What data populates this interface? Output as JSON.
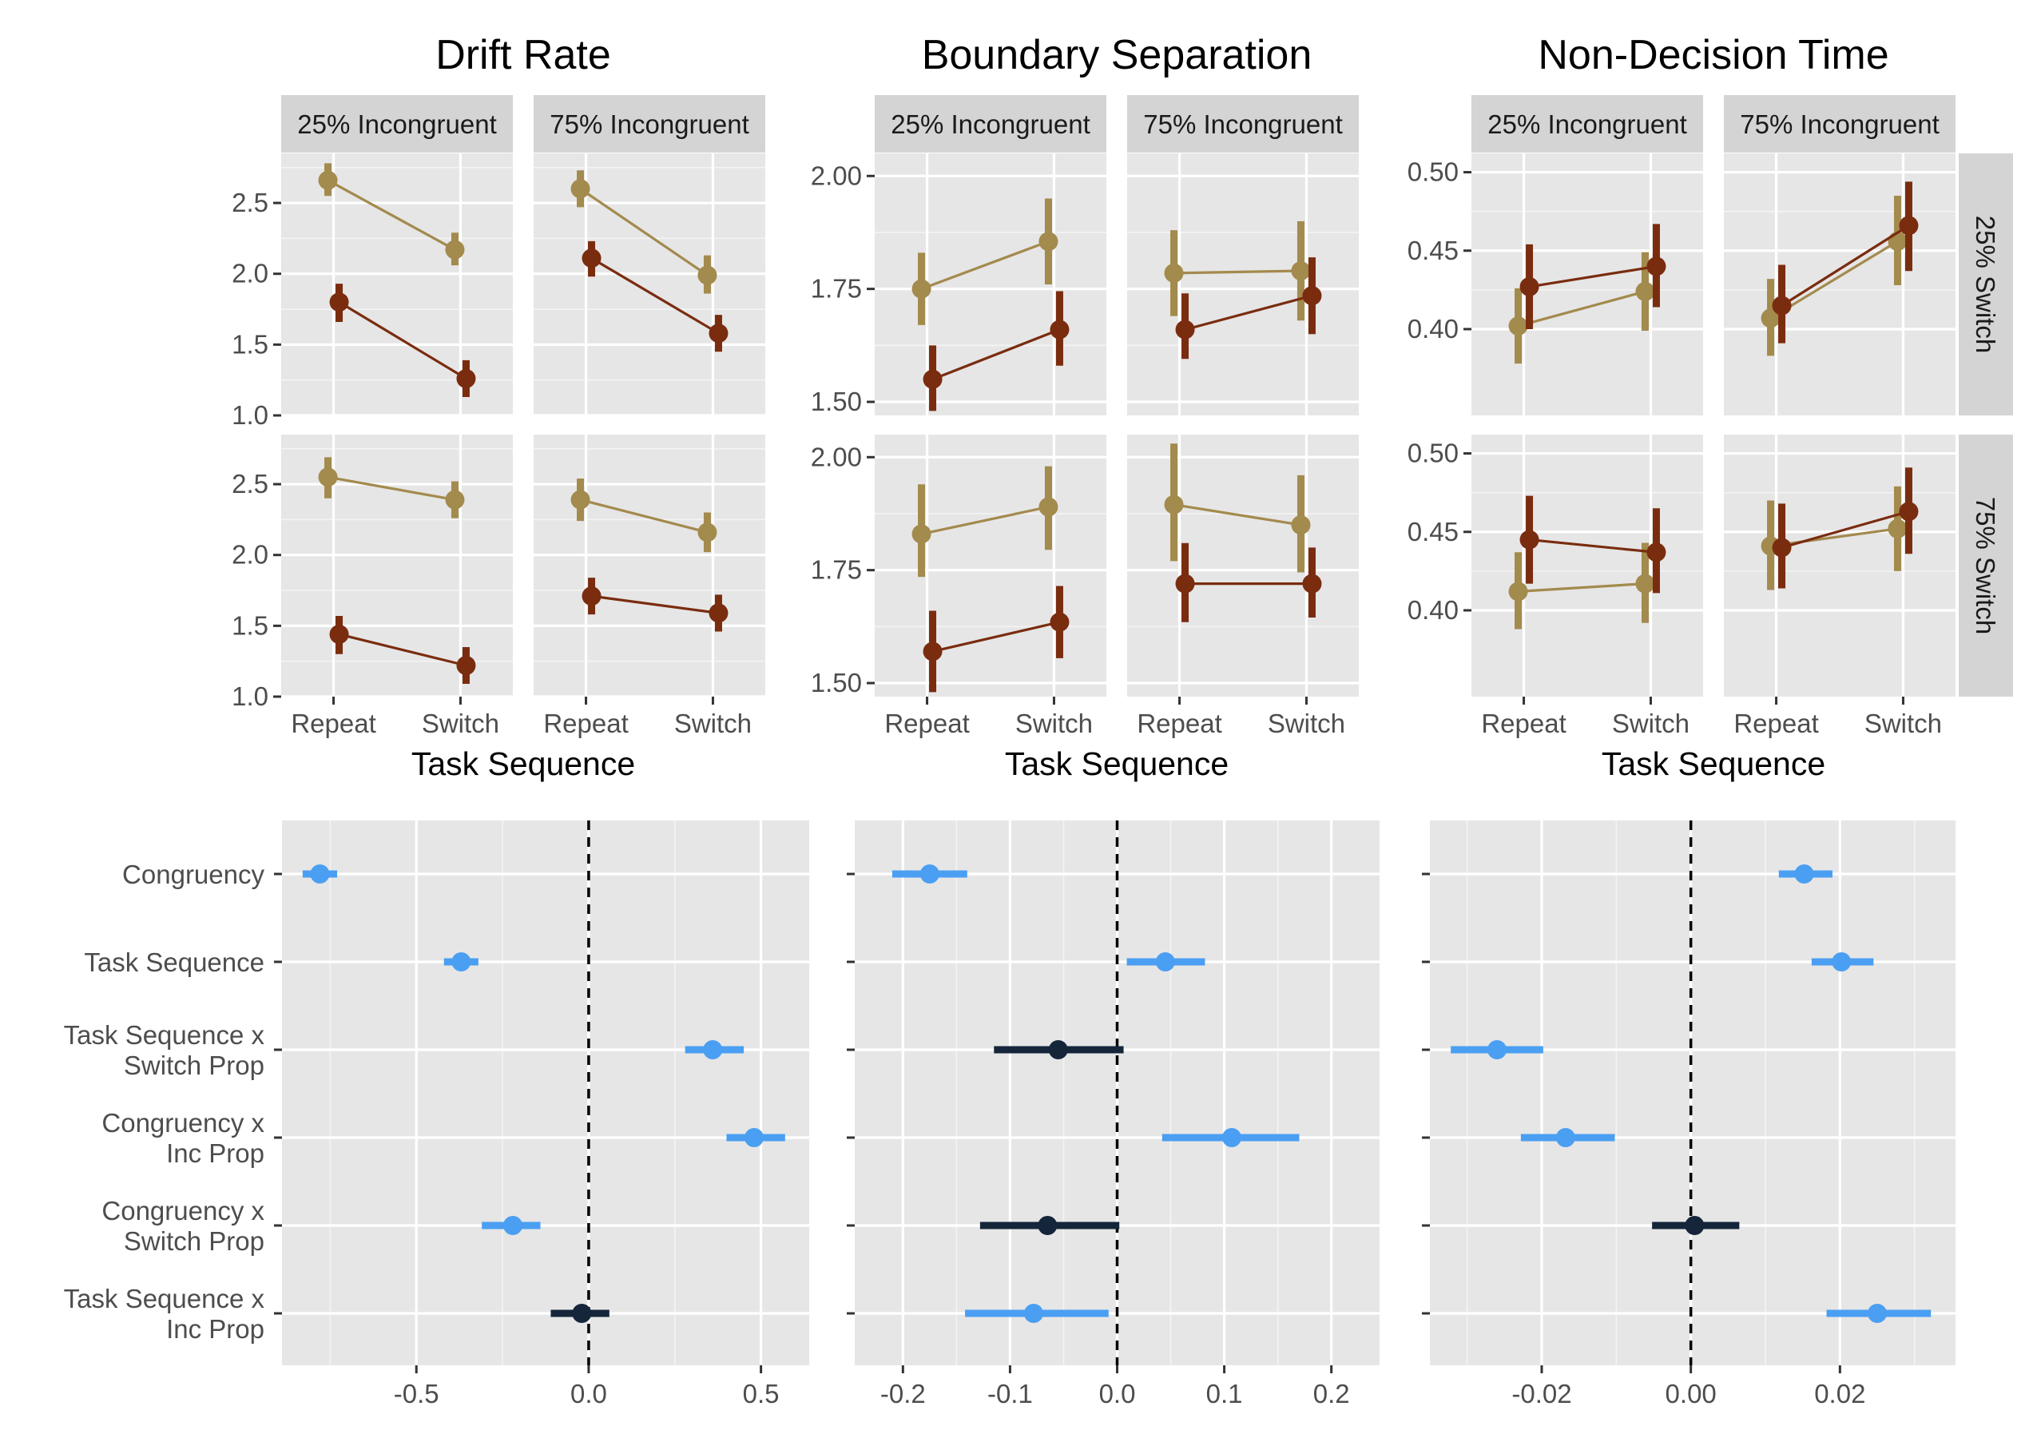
{
  "colors": {
    "panel": "#e6e6e6",
    "strip": "#d4d4d4",
    "tan_series": "#a38a4d",
    "brown_series": "#7a2c0f",
    "significant": "#4a9ff2",
    "nonsignificant": "#15253a"
  },
  "chart_data": [
    {
      "type": "line",
      "title": "Drift Rate",
      "xlabel": "Task Sequence",
      "categories": [
        "Repeat",
        "Switch"
      ],
      "column_facets": [
        "25% Incongruent",
        "75% Incongruent"
      ],
      "row_facets": [
        "25% Switch",
        "75% Switch"
      ],
      "ylim": [
        1.0,
        2.85
      ],
      "yticks": [
        1.0,
        1.5,
        2.0,
        2.5
      ],
      "ytick_labels": [
        "1.0",
        "1.5",
        "2.0",
        "2.5"
      ],
      "legend": "none",
      "cells": [
        {
          "row": "25% Switch",
          "col": "25% Incongruent",
          "series": [
            {
              "color": "#a38a4d",
              "values": [
                2.66,
                2.17
              ],
              "lower": [
                2.55,
                2.06
              ],
              "upper": [
                2.78,
                2.29
              ]
            },
            {
              "color": "#7a2c0f",
              "values": [
                1.8,
                1.26
              ],
              "lower": [
                1.66,
                1.13
              ],
              "upper": [
                1.93,
                1.39
              ]
            }
          ]
        },
        {
          "row": "25% Switch",
          "col": "75% Incongruent",
          "series": [
            {
              "color": "#a38a4d",
              "values": [
                2.6,
                1.99
              ],
              "lower": [
                2.47,
                1.86
              ],
              "upper": [
                2.73,
                2.13
              ]
            },
            {
              "color": "#7a2c0f",
              "values": [
                2.11,
                1.58
              ],
              "lower": [
                1.98,
                1.45
              ],
              "upper": [
                2.23,
                1.71
              ]
            }
          ]
        },
        {
          "row": "75% Switch",
          "col": "25% Incongruent",
          "series": [
            {
              "color": "#a38a4d",
              "values": [
                2.55,
                2.39
              ],
              "lower": [
                2.4,
                2.26
              ],
              "upper": [
                2.69,
                2.52
              ]
            },
            {
              "color": "#7a2c0f",
              "values": [
                1.44,
                1.22
              ],
              "lower": [
                1.3,
                1.09
              ],
              "upper": [
                1.57,
                1.35
              ]
            }
          ]
        },
        {
          "row": "75% Switch",
          "col": "75% Incongruent",
          "series": [
            {
              "color": "#a38a4d",
              "values": [
                2.39,
                2.16
              ],
              "lower": [
                2.24,
                2.02
              ],
              "upper": [
                2.54,
                2.3
              ]
            },
            {
              "color": "#7a2c0f",
              "values": [
                1.71,
                1.59
              ],
              "lower": [
                1.58,
                1.46
              ],
              "upper": [
                1.84,
                1.72
              ]
            }
          ]
        }
      ]
    },
    {
      "type": "line",
      "title": "Boundary Separation",
      "xlabel": "Task Sequence",
      "categories": [
        "Repeat",
        "Switch"
      ],
      "column_facets": [
        "25% Incongruent",
        "75% Incongruent"
      ],
      "row_facets": [
        "25% Switch",
        "75% Switch"
      ],
      "ylim": [
        1.47,
        2.05
      ],
      "yticks": [
        1.5,
        1.75,
        2.0
      ],
      "ytick_labels": [
        "1.50",
        "1.75",
        "2.00"
      ],
      "legend": "none",
      "cells": [
        {
          "row": "25% Switch",
          "col": "25% Incongruent",
          "series": [
            {
              "color": "#a38a4d",
              "values": [
                1.75,
                1.855
              ],
              "lower": [
                1.67,
                1.76
              ],
              "upper": [
                1.83,
                1.95
              ]
            },
            {
              "color": "#7a2c0f",
              "values": [
                1.55,
                1.66
              ],
              "lower": [
                1.48,
                1.58
              ],
              "upper": [
                1.625,
                1.745
              ]
            }
          ]
        },
        {
          "row": "25% Switch",
          "col": "75% Incongruent",
          "series": [
            {
              "color": "#a38a4d",
              "values": [
                1.785,
                1.79
              ],
              "lower": [
                1.69,
                1.68
              ],
              "upper": [
                1.88,
                1.9
              ]
            },
            {
              "color": "#7a2c0f",
              "values": [
                1.66,
                1.735
              ],
              "lower": [
                1.595,
                1.65
              ],
              "upper": [
                1.74,
                1.82
              ]
            }
          ]
        },
        {
          "row": "75% Switch",
          "col": "25% Incongruent",
          "series": [
            {
              "color": "#a38a4d",
              "values": [
                1.83,
                1.89
              ],
              "lower": [
                1.735,
                1.795
              ],
              "upper": [
                1.94,
                1.98
              ]
            },
            {
              "color": "#7a2c0f",
              "values": [
                1.57,
                1.635
              ],
              "lower": [
                1.48,
                1.555
              ],
              "upper": [
                1.66,
                1.715
              ]
            }
          ]
        },
        {
          "row": "75% Switch",
          "col": "75% Incongruent",
          "series": [
            {
              "color": "#a38a4d",
              "values": [
                1.895,
                1.85
              ],
              "lower": [
                1.77,
                1.745
              ],
              "upper": [
                2.03,
                1.96
              ]
            },
            {
              "color": "#7a2c0f",
              "values": [
                1.72,
                1.72
              ],
              "lower": [
                1.635,
                1.645
              ],
              "upper": [
                1.81,
                1.8
              ]
            }
          ]
        }
      ]
    },
    {
      "type": "line",
      "title": "Non-Decision Time",
      "xlabel": "Task Sequence",
      "categories": [
        "Repeat",
        "Switch"
      ],
      "column_facets": [
        "25% Incongruent",
        "75% Incongruent"
      ],
      "row_facets": [
        "25% Switch",
        "75% Switch"
      ],
      "ylim": [
        0.345,
        0.512
      ],
      "yticks": [
        0.4,
        0.45,
        0.5
      ],
      "ytick_labels": [
        "0.40",
        "0.45",
        "0.50"
      ],
      "legend": "none",
      "cells": [
        {
          "row": "25% Switch",
          "col": "25% Incongruent",
          "series": [
            {
              "color": "#a38a4d",
              "values": [
                0.402,
                0.424
              ],
              "lower": [
                0.378,
                0.399
              ],
              "upper": [
                0.426,
                0.449
              ]
            },
            {
              "color": "#7a2c0f",
              "values": [
                0.427,
                0.44
              ],
              "lower": [
                0.4,
                0.414
              ],
              "upper": [
                0.454,
                0.467
              ]
            }
          ]
        },
        {
          "row": "25% Switch",
          "col": "75% Incongruent",
          "series": [
            {
              "color": "#a38a4d",
              "values": [
                0.407,
                0.456
              ],
              "lower": [
                0.383,
                0.428
              ],
              "upper": [
                0.432,
                0.485
              ]
            },
            {
              "color": "#7a2c0f",
              "values": [
                0.415,
                0.466
              ],
              "lower": [
                0.391,
                0.437
              ],
              "upper": [
                0.441,
                0.494
              ]
            }
          ]
        },
        {
          "row": "75% Switch",
          "col": "25% Incongruent",
          "series": [
            {
              "color": "#a38a4d",
              "values": [
                0.412,
                0.417
              ],
              "lower": [
                0.388,
                0.392
              ],
              "upper": [
                0.437,
                0.443
              ]
            },
            {
              "color": "#7a2c0f",
              "values": [
                0.445,
                0.437
              ],
              "lower": [
                0.417,
                0.411
              ],
              "upper": [
                0.473,
                0.465
              ]
            }
          ]
        },
        {
          "row": "75% Switch",
          "col": "75% Incongruent",
          "series": [
            {
              "color": "#a38a4d",
              "values": [
                0.441,
                0.452
              ],
              "lower": [
                0.413,
                0.425
              ],
              "upper": [
                0.47,
                0.479
              ]
            },
            {
              "color": "#7a2c0f",
              "values": [
                0.44,
                0.463
              ],
              "lower": [
                0.414,
                0.436
              ],
              "upper": [
                0.468,
                0.491
              ]
            }
          ]
        }
      ]
    },
    {
      "type": "scatter",
      "subtype": "coefficient-plot",
      "title": "",
      "xlabel": "",
      "ylabel": "",
      "categories": [
        "Congruency",
        "Task Sequence",
        "Task Sequence x Switch Prop",
        "Congruency x Inc Prop",
        "Congruency x Switch Prop",
        "Task Sequence x Inc Prop"
      ],
      "category_labels": [
        [
          "Congruency"
        ],
        [
          "Task Sequence"
        ],
        [
          "Task Sequence x",
          "Switch Prop"
        ],
        [
          "Congruency x",
          "Inc Prop"
        ],
        [
          "Congruency x",
          "Switch Prop"
        ],
        [
          "Task Sequence x",
          "Inc Prop"
        ]
      ],
      "xlim": [
        -0.89,
        0.64
      ],
      "xticks": [
        -0.5,
        0.0,
        0.5
      ],
      "xtick_labels": [
        "-0.5",
        "0.0",
        "0.5"
      ],
      "reference_line": 0,
      "estimates": [
        -0.78,
        -0.37,
        0.36,
        0.48,
        -0.22,
        -0.02
      ],
      "lower": [
        -0.83,
        -0.42,
        0.28,
        0.4,
        -0.31,
        -0.11
      ],
      "upper": [
        -0.73,
        -0.32,
        0.45,
        0.57,
        -0.14,
        0.06
      ],
      "significant": [
        true,
        true,
        true,
        true,
        true,
        false
      ]
    },
    {
      "type": "scatter",
      "subtype": "coefficient-plot",
      "title": "",
      "xlabel": "",
      "ylabel": "",
      "categories": [
        "Congruency",
        "Task Sequence",
        "Task Sequence x Switch Prop",
        "Congruency x Inc Prop",
        "Congruency x Switch Prop",
        "Task Sequence x Inc Prop"
      ],
      "xlim": [
        -0.245,
        0.245
      ],
      "xticks": [
        -0.2,
        -0.1,
        0.0,
        0.1,
        0.2
      ],
      "xtick_labels": [
        "-0.2",
        "-0.1",
        "0.0",
        "0.1",
        "0.2"
      ],
      "reference_line": 0,
      "estimates": [
        -0.175,
        0.045,
        -0.055,
        0.107,
        -0.065,
        -0.078
      ],
      "lower": [
        -0.21,
        0.009,
        -0.115,
        0.042,
        -0.128,
        -0.142
      ],
      "upper": [
        -0.14,
        0.082,
        0.006,
        0.17,
        0.002,
        -0.008
      ],
      "significant": [
        true,
        true,
        false,
        true,
        false,
        true
      ]
    },
    {
      "type": "scatter",
      "subtype": "coefficient-plot",
      "title": "",
      "xlabel": "",
      "ylabel": "",
      "categories": [
        "Congruency",
        "Task Sequence",
        "Task Sequence x Switch Prop",
        "Congruency x Inc Prop",
        "Congruency x Switch Prop",
        "Task Sequence x Inc Prop"
      ],
      "xlim": [
        -0.035,
        0.0355
      ],
      "xticks": [
        -0.02,
        0.0,
        0.02
      ],
      "xtick_labels": [
        "-0.02",
        "0.00",
        "0.02"
      ],
      "reference_line": 0,
      "estimates": [
        0.0152,
        0.0202,
        -0.026,
        -0.0168,
        0.0005,
        0.025
      ],
      "lower": [
        0.0118,
        0.0162,
        -0.0322,
        -0.0228,
        -0.0052,
        0.0182
      ],
      "upper": [
        0.019,
        0.0245,
        -0.0198,
        -0.0102,
        0.0065,
        0.0322
      ],
      "significant": [
        true,
        true,
        true,
        true,
        false,
        true
      ]
    }
  ]
}
